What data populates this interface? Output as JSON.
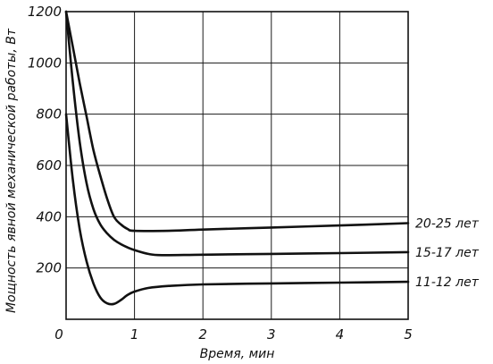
{
  "chart_data": {
    "type": "line",
    "xlabel": "Время, мин",
    "ylabel": "Мощность явной механической работы, Вт",
    "xlim": [
      0,
      5
    ],
    "ylim": [
      0,
      1200
    ],
    "xticks": [
      "0",
      "1",
      "2",
      "3",
      "4",
      "5"
    ],
    "yticks": [
      "200",
      "400",
      "600",
      "800",
      "1000",
      "1200"
    ],
    "grid": true,
    "series": [
      {
        "name": "20-25 лет",
        "x": [
          0,
          0.1,
          0.2,
          0.3,
          0.4,
          0.5,
          0.6,
          0.7,
          0.8,
          0.9,
          1.0,
          1.5,
          2.0,
          3.0,
          4.0,
          5.0
        ],
        "y": [
          1200,
          1060,
          920,
          790,
          660,
          560,
          470,
          400,
          370,
          352,
          345,
          345,
          350,
          358,
          366,
          375
        ]
      },
      {
        "name": "15-17 лет",
        "x": [
          0,
          0.1,
          0.2,
          0.3,
          0.4,
          0.5,
          0.6,
          0.7,
          0.8,
          0.9,
          1.0,
          1.2,
          1.4,
          2.0,
          3.0,
          4.0,
          5.0
        ],
        "y": [
          1200,
          920,
          690,
          530,
          430,
          370,
          335,
          310,
          293,
          280,
          270,
          255,
          250,
          252,
          255,
          258,
          262
        ]
      },
      {
        "name": "11-12 лет",
        "x": [
          0,
          0.1,
          0.2,
          0.3,
          0.4,
          0.5,
          0.6,
          0.7,
          0.8,
          0.9,
          1.0,
          1.2,
          1.5,
          2.0,
          3.0,
          4.0,
          5.0
        ],
        "y": [
          800,
          540,
          350,
          225,
          140,
          85,
          62,
          60,
          75,
          95,
          108,
          122,
          130,
          136,
          140,
          143,
          146
        ]
      }
    ]
  }
}
